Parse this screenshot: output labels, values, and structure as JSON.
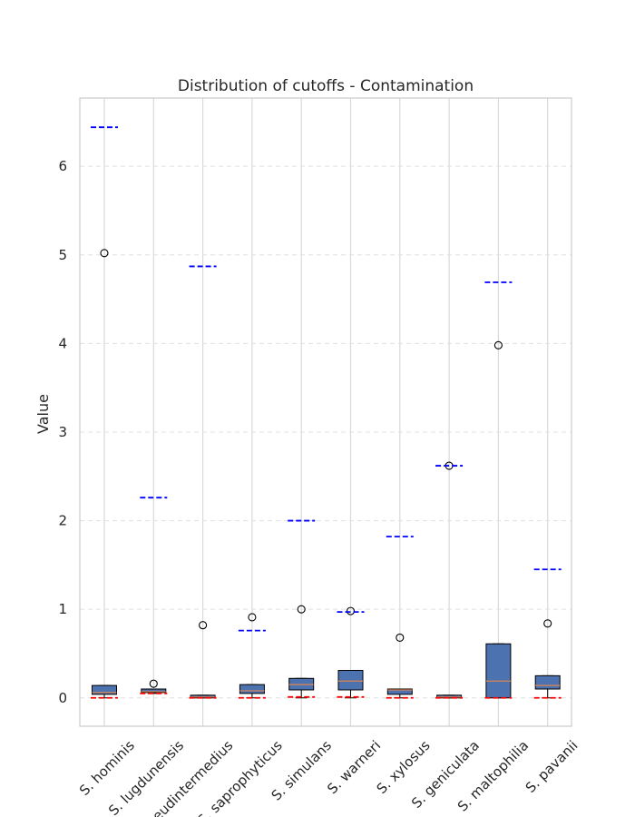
{
  "chart_data": {
    "type": "box",
    "title": "Distribution of cutoffs - Contamination",
    "xlabel": "",
    "ylabel": "Value",
    "ylim": [
      -0.32,
      6.77
    ],
    "yticks": [
      0,
      1,
      2,
      3,
      4,
      5,
      6
    ],
    "grid": "y-dashed",
    "colors": {
      "box_fill": "#4c72b0",
      "median": "#dd8452",
      "upper_cutoff": "#0000ff",
      "lower_cutoff": "#ff0000",
      "grid": "#e0e0e0",
      "vgrid": "#d9d9d9"
    },
    "categories": [
      "S. hominis",
      "S. lugdunensis",
      "S. pseudintermedius",
      "S. saprophyticus",
      "S. simulans",
      "S. warneri",
      "S. xylosus",
      "S. geniculata",
      "S. maltophilia",
      "S. pavanii"
    ],
    "boxes": [
      {
        "whislo": 0.0,
        "q1": 0.04,
        "med": 0.06,
        "q3": 0.14,
        "whishi": 0.14,
        "fliers": [
          5.02
        ]
      },
      {
        "whislo": 0.05,
        "q1": 0.06,
        "med": 0.07,
        "q3": 0.1,
        "whishi": 0.1,
        "fliers": [
          0.16
        ]
      },
      {
        "whislo": 0.0,
        "q1": 0.0,
        "med": 0.01,
        "q3": 0.03,
        "whishi": 0.03,
        "fliers": [
          0.82
        ]
      },
      {
        "whislo": 0.0,
        "q1": 0.05,
        "med": 0.08,
        "q3": 0.15,
        "whishi": 0.15,
        "fliers": [
          0.91
        ]
      },
      {
        "whislo": 0.0,
        "q1": 0.09,
        "med": 0.15,
        "q3": 0.22,
        "whishi": 0.22,
        "fliers": [
          1.0
        ]
      },
      {
        "whislo": 0.0,
        "q1": 0.09,
        "med": 0.19,
        "q3": 0.31,
        "whishi": 0.31,
        "fliers": [
          0.98
        ]
      },
      {
        "whislo": 0.0,
        "q1": 0.04,
        "med": 0.09,
        "q3": 0.1,
        "whishi": 0.1,
        "fliers": [
          0.68
        ]
      },
      {
        "whislo": 0.0,
        "q1": 0.0,
        "med": 0.01,
        "q3": 0.03,
        "whishi": 0.03,
        "fliers": [
          2.62
        ]
      },
      {
        "whislo": 0.0,
        "q1": 0.0,
        "med": 0.19,
        "q3": 0.61,
        "whishi": 0.61,
        "fliers": [
          3.98
        ]
      },
      {
        "whislo": 0.0,
        "q1": 0.1,
        "med": 0.14,
        "q3": 0.25,
        "whishi": 0.25,
        "fliers": [
          0.84
        ]
      }
    ],
    "upper_cutoffs": [
      6.44,
      2.26,
      4.87,
      0.76,
      2.0,
      0.97,
      1.82,
      2.62,
      4.69,
      1.45
    ],
    "lower_cutoffs": [
      0.0,
      0.05,
      0.0,
      0.0,
      0.01,
      0.01,
      0.0,
      0.0,
      0.0,
      0.0
    ]
  }
}
